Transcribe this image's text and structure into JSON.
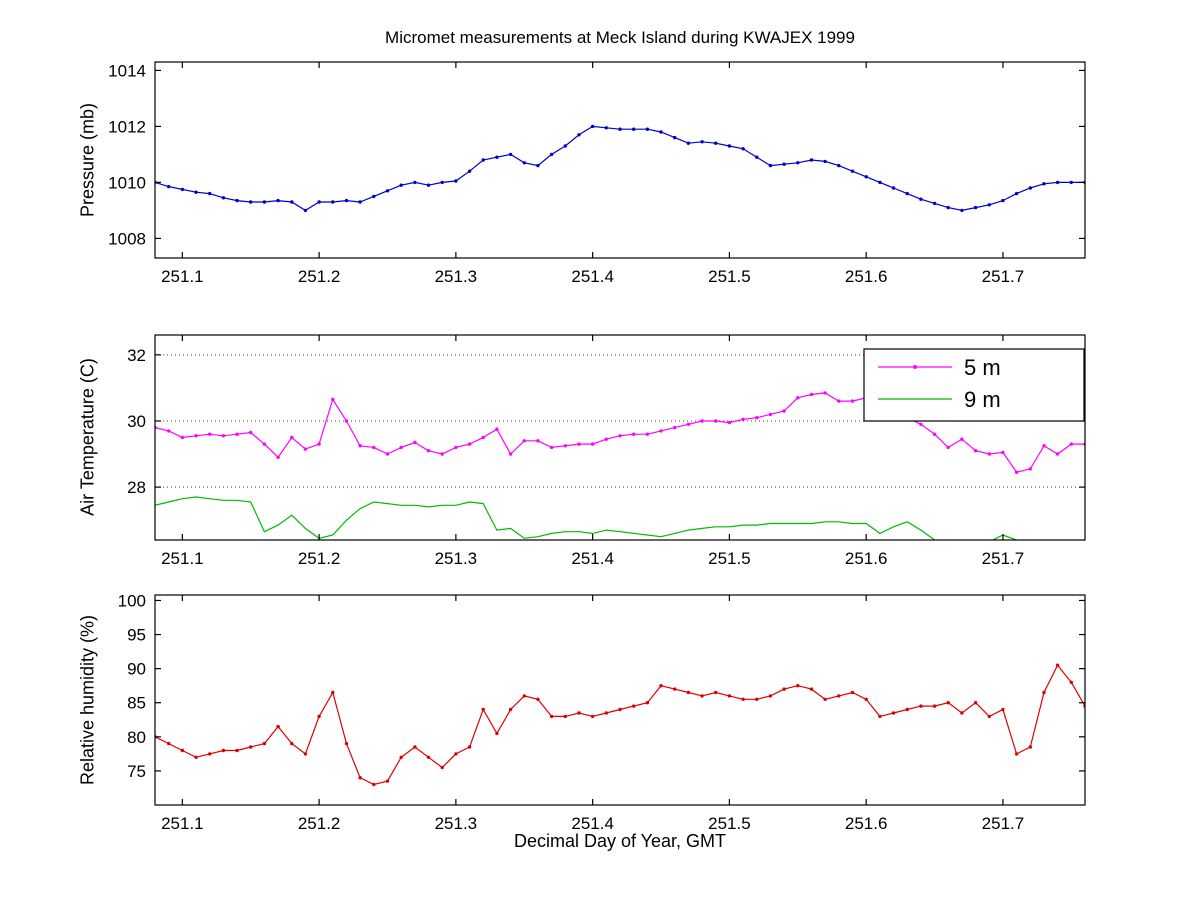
{
  "figure": {
    "title": "Micromet measurements at Meck Island during KWAJEX 1999",
    "xlabel": "Decimal Day of Year, GMT",
    "background": "#ffffff"
  },
  "x_shared": [
    251.08,
    251.09,
    251.1,
    251.11,
    251.12,
    251.13,
    251.14,
    251.15,
    251.16,
    251.17,
    251.18,
    251.19,
    251.2,
    251.21,
    251.22,
    251.23,
    251.24,
    251.25,
    251.26,
    251.27,
    251.28,
    251.29,
    251.3,
    251.31,
    251.32,
    251.33,
    251.34,
    251.35,
    251.36,
    251.37,
    251.38,
    251.39,
    251.4,
    251.41,
    251.42,
    251.43,
    251.44,
    251.45,
    251.46,
    251.47,
    251.48,
    251.49,
    251.5,
    251.51,
    251.52,
    251.53,
    251.54,
    251.55,
    251.56,
    251.57,
    251.58,
    251.59,
    251.6,
    251.61,
    251.62,
    251.63,
    251.64,
    251.65,
    251.66,
    251.67,
    251.68,
    251.69,
    251.7,
    251.71,
    251.72,
    251.73,
    251.74,
    251.75,
    251.76
  ],
  "chart_data": [
    {
      "id": "pressure",
      "type": "line",
      "ylabel": "Pressure (mb)",
      "xlim": [
        251.08,
        251.76
      ],
      "ylim": [
        1007.3,
        1014.3
      ],
      "xticks": [
        251.1,
        251.2,
        251.3,
        251.4,
        251.5,
        251.6,
        251.7
      ],
      "xtick_labels": [
        "251.1",
        "251.2",
        "251.3",
        "251.4",
        "251.5",
        "251.6",
        "251.7"
      ],
      "yticks": [
        1008,
        1010,
        1012,
        1014
      ],
      "ytick_labels": [
        "1008",
        "1010",
        "1012",
        "1014"
      ],
      "grid": false,
      "series": [
        {
          "name": "pressure",
          "color": "#0000cc",
          "marker": true,
          "values": [
            1010.0,
            1009.85,
            1009.75,
            1009.65,
            1009.6,
            1009.45,
            1009.35,
            1009.3,
            1009.3,
            1009.35,
            1009.3,
            1009.0,
            1009.3,
            1009.3,
            1009.35,
            1009.3,
            1009.5,
            1009.7,
            1009.9,
            1010.0,
            1009.9,
            1010.0,
            1010.05,
            1010.4,
            1010.8,
            1010.9,
            1011.0,
            1010.7,
            1010.6,
            1011.0,
            1011.3,
            1011.7,
            1012.0,
            1011.95,
            1011.9,
            1011.9,
            1011.9,
            1011.8,
            1011.6,
            1011.4,
            1011.45,
            1011.4,
            1011.3,
            1011.2,
            1010.9,
            1010.6,
            1010.65,
            1010.7,
            1010.8,
            1010.75,
            1010.6,
            1010.4,
            1010.2,
            1010.0,
            1009.8,
            1009.6,
            1009.4,
            1009.25,
            1009.1,
            1009.0,
            1009.1,
            1009.2,
            1009.35,
            1009.6,
            1009.8,
            1009.95,
            1010.0,
            1010.0,
            1010.0
          ]
        }
      ]
    },
    {
      "id": "air-temperature",
      "type": "line",
      "ylabel": "Air Temperature (C)",
      "xlim": [
        251.08,
        251.76
      ],
      "ylim": [
        26.4,
        32.6
      ],
      "xticks": [
        251.1,
        251.2,
        251.3,
        251.4,
        251.5,
        251.6,
        251.7
      ],
      "xtick_labels": [
        "251.1",
        "251.2",
        "251.3",
        "251.4",
        "251.5",
        "251.6",
        "251.7"
      ],
      "yticks": [
        28,
        30,
        32
      ],
      "ytick_labels": [
        "28",
        "30",
        "32"
      ],
      "grid": true,
      "legend": {
        "entries": [
          {
            "label": "5 m",
            "color": "#ff00ff",
            "marker": true
          },
          {
            "label": "9 m",
            "color": "#00bb00",
            "marker": false
          }
        ]
      },
      "series": [
        {
          "name": "air-temp-5m",
          "color": "#ff00ff",
          "marker": true,
          "values": [
            29.8,
            29.7,
            29.5,
            29.55,
            29.6,
            29.55,
            29.6,
            29.65,
            29.3,
            28.9,
            29.5,
            29.15,
            29.3,
            30.65,
            30.0,
            29.25,
            29.2,
            29.0,
            29.2,
            29.35,
            29.1,
            29.0,
            29.2,
            29.3,
            29.5,
            29.75,
            29.0,
            29.4,
            29.4,
            29.2,
            29.25,
            29.3,
            29.3,
            29.45,
            29.55,
            29.6,
            29.6,
            29.7,
            29.8,
            29.9,
            30.0,
            30.0,
            29.95,
            30.05,
            30.1,
            30.2,
            30.3,
            30.7,
            30.8,
            30.85,
            30.6,
            30.6,
            30.7,
            30.5,
            30.3,
            30.1,
            29.9,
            29.6,
            29.2,
            29.45,
            29.1,
            29.0,
            29.05,
            28.45,
            28.55,
            29.25,
            29.0,
            29.3,
            29.3
          ]
        },
        {
          "name": "air-temp-9m",
          "color": "#00bb00",
          "marker": false,
          "values": [
            27.45,
            27.55,
            27.65,
            27.7,
            27.65,
            27.6,
            27.6,
            27.55,
            26.65,
            26.85,
            27.15,
            26.75,
            26.45,
            26.55,
            27.0,
            27.35,
            27.55,
            27.5,
            27.45,
            27.45,
            27.4,
            27.45,
            27.45,
            27.55,
            27.5,
            26.7,
            26.75,
            26.45,
            26.5,
            26.6,
            26.65,
            26.65,
            26.6,
            26.7,
            26.65,
            26.6,
            26.55,
            26.5,
            26.6,
            26.7,
            26.75,
            26.8,
            26.8,
            26.85,
            26.85,
            26.9,
            26.9,
            26.9,
            26.9,
            26.95,
            26.95,
            26.9,
            26.9,
            26.6,
            26.8,
            26.95,
            26.7,
            26.4,
            26.35,
            26.35,
            26.35,
            26.35,
            26.55,
            26.4,
            26.35,
            26.35,
            26.35,
            26.35,
            26.35
          ]
        }
      ]
    },
    {
      "id": "relative-humidity",
      "type": "line",
      "ylabel": "Relative humidity (%)",
      "xlim": [
        251.08,
        251.76
      ],
      "ylim": [
        70,
        100.8
      ],
      "xticks": [
        251.1,
        251.2,
        251.3,
        251.4,
        251.5,
        251.6,
        251.7
      ],
      "xtick_labels": [
        "251.1",
        "251.2",
        "251.3",
        "251.4",
        "251.5",
        "251.6",
        "251.7"
      ],
      "yticks": [
        75,
        80,
        85,
        90,
        95,
        100
      ],
      "ytick_labels": [
        "75",
        "80",
        "85",
        "90",
        "95",
        "100"
      ],
      "grid": false,
      "series": [
        {
          "name": "relative-humidity",
          "color": "#dd0000",
          "marker": true,
          "values": [
            80.0,
            79.0,
            78.0,
            77.0,
            77.5,
            78.0,
            78.0,
            78.5,
            79.0,
            81.5,
            79.0,
            77.5,
            83.0,
            86.5,
            79.0,
            74.0,
            73.0,
            73.5,
            77.0,
            78.5,
            77.0,
            75.5,
            77.5,
            78.5,
            84.0,
            80.5,
            84.0,
            86.0,
            85.5,
            83.0,
            83.0,
            83.5,
            83.0,
            83.5,
            84.0,
            84.5,
            85.0,
            87.5,
            87.0,
            86.5,
            86.0,
            86.5,
            86.0,
            85.5,
            85.5,
            86.0,
            87.0,
            87.5,
            87.0,
            85.5,
            86.0,
            86.5,
            85.5,
            83.0,
            83.5,
            84.0,
            84.5,
            84.5,
            85.0,
            83.5,
            85.0,
            83.0,
            84.0,
            77.5,
            78.5,
            86.5,
            90.5,
            88.0,
            84.5
          ]
        }
      ]
    }
  ]
}
